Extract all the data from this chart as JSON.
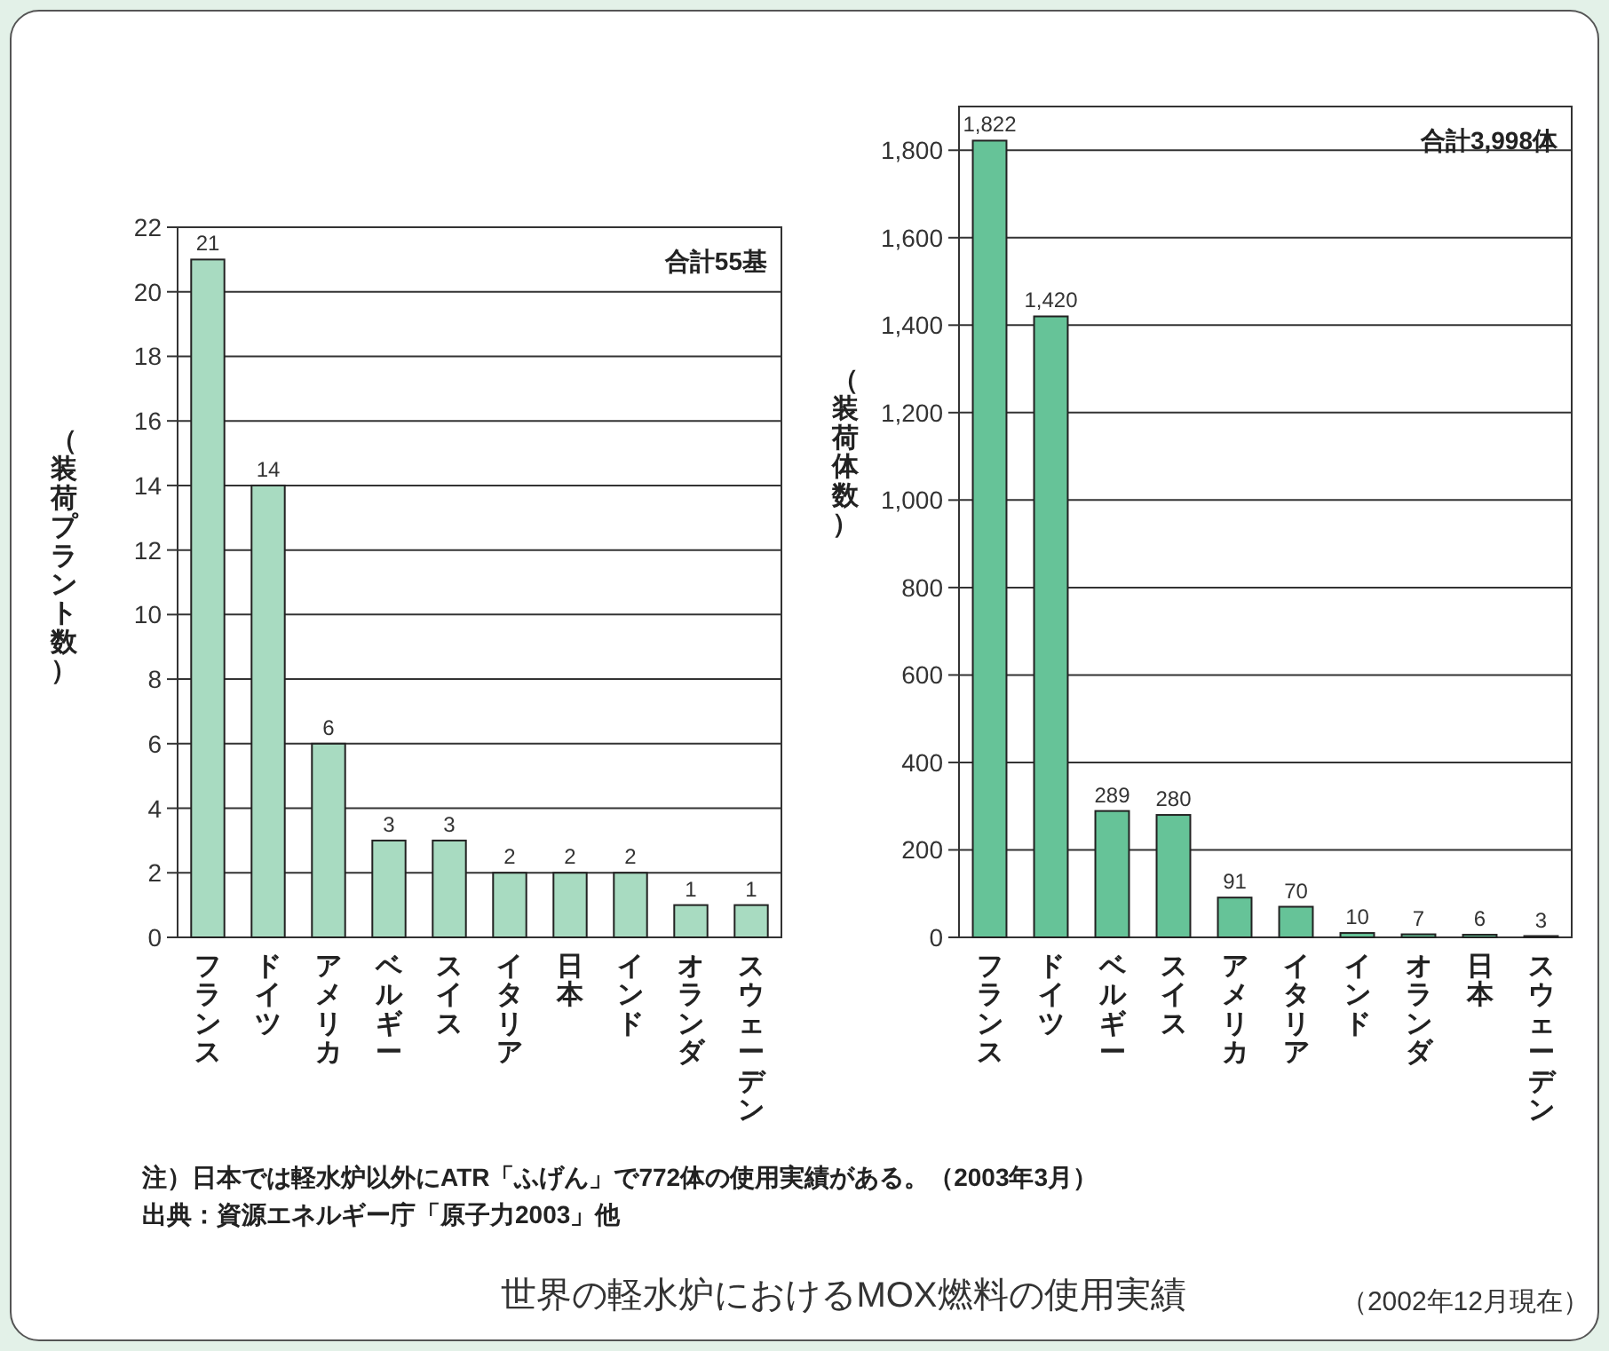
{
  "chart_data": [
    {
      "type": "bar",
      "title": "世界の軽水炉におけるMOX燃料の使用実績",
      "ylabel": "（装荷プラント数）",
      "annotations": [
        "合計55基",
        "注）日本では軽水炉以外にATR「ふげん」で772体の使用実績がある。（2003年3月）",
        "出典：資源エネルギー庁「原子力2003」他"
      ],
      "categories": [
        "フランス",
        "ドイツ",
        "アメリカ",
        "ベルギー",
        "スイス",
        "イタリア",
        "日本",
        "インド",
        "オランダ",
        "スウェーデン"
      ],
      "values": [
        21,
        14,
        6,
        3,
        3,
        2,
        2,
        2,
        1,
        1
      ],
      "color": "#a8dbc1",
      "ylim": [
        0,
        22
      ],
      "yticks": [
        0,
        2,
        4,
        6,
        8,
        10,
        12,
        14,
        16,
        18,
        20,
        22
      ],
      "grid": "y",
      "data_labels": true
    },
    {
      "type": "bar",
      "subtitle": "（2002年12月現在）",
      "ylabel": "（装荷体数）",
      "annotations": [
        "合計3,998体"
      ],
      "categories": [
        "フランス",
        "ドイツ",
        "ベルギー",
        "スイス",
        "アメリカ",
        "イタリア",
        "インド",
        "オランダ",
        "日本",
        "スウェーデン"
      ],
      "values": [
        1822,
        1420,
        289,
        280,
        91,
        70,
        10,
        7,
        6,
        3
      ],
      "value_labels": [
        "1,822",
        "1,420",
        "289",
        "280",
        "91",
        "70",
        "10",
        "7",
        "6",
        "3"
      ],
      "color": "#66c398",
      "ylim": [
        0,
        1900
      ],
      "yticks": [
        0,
        {
          "value": 200,
          "label": "200"
        },
        {
          "value": 400,
          "label": "400"
        },
        {
          "value": 600,
          "label": "600"
        },
        {
          "value": 800,
          "label": "800"
        },
        {
          "value": 1000,
          "label": "1,000"
        },
        {
          "value": 1200,
          "label": "1,200"
        },
        {
          "value": 1400,
          "label": "1,400"
        },
        {
          "value": 1600,
          "label": "1,600"
        },
        {
          "value": 1800,
          "label": "1,800"
        }
      ],
      "grid": "y"
    }
  ]
}
